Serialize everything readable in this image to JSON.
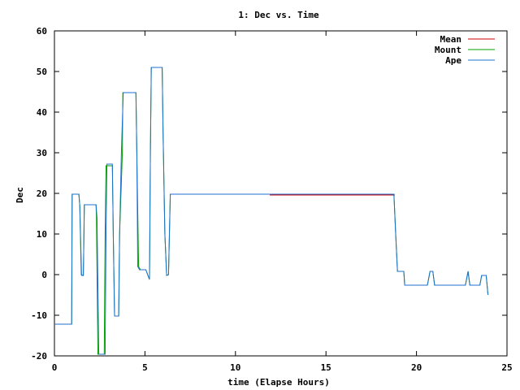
{
  "chart_data": {
    "type": "line",
    "title": "1: Dec vs. Time",
    "xlabel": "time (Elapse Hours)",
    "ylabel": "Dec",
    "xlim": [
      0,
      25
    ],
    "ylim": [
      -20,
      60
    ],
    "x_ticks": [
      0,
      5,
      10,
      15,
      20,
      25
    ],
    "y_ticks": [
      -20,
      -10,
      0,
      10,
      20,
      30,
      40,
      50,
      60
    ],
    "grid": false,
    "legend_position": "top-right",
    "series": [
      {
        "name": "Mean",
        "color": "#cc0000",
        "points": [
          [
            11.9,
            19.6
          ],
          [
            18.8,
            19.6
          ]
        ]
      },
      {
        "name": "Mount",
        "color": "#00a000",
        "points": [
          [
            0.0,
            -12.2
          ],
          [
            0.95,
            -12.2
          ],
          [
            0.98,
            19.8
          ],
          [
            1.35,
            19.8
          ],
          [
            1.4,
            17.0
          ],
          [
            1.48,
            0.0
          ],
          [
            1.6,
            -0.2
          ],
          [
            1.65,
            17.2
          ],
          [
            2.3,
            17.2
          ],
          [
            2.32,
            14.0
          ],
          [
            2.4,
            -19.6
          ],
          [
            2.75,
            -19.6
          ],
          [
            2.8,
            10.0
          ],
          [
            2.85,
            26.8
          ],
          [
            3.2,
            26.8
          ],
          [
            3.25,
            10.0
          ],
          [
            3.32,
            -10.2
          ],
          [
            3.55,
            -10.2
          ],
          [
            3.6,
            10.0
          ],
          [
            3.75,
            30.0
          ],
          [
            3.78,
            44.8
          ],
          [
            4.5,
            44.8
          ],
          [
            4.55,
            30.0
          ],
          [
            4.65,
            2.0
          ],
          [
            4.75,
            1.2
          ],
          [
            5.05,
            1.2
          ],
          [
            5.15,
            0.0
          ],
          [
            5.25,
            -1.2
          ],
          [
            5.3,
            30.0
          ],
          [
            5.35,
            51.0
          ],
          [
            5.95,
            51.0
          ],
          [
            6.0,
            35.0
          ],
          [
            6.1,
            10.0
          ],
          [
            6.2,
            -0.2
          ],
          [
            6.3,
            0.0
          ],
          [
            6.4,
            19.8
          ],
          [
            18.75,
            19.8
          ],
          [
            18.85,
            10.0
          ],
          [
            18.95,
            0.8
          ],
          [
            19.3,
            0.8
          ],
          [
            19.35,
            -2.6
          ],
          [
            20.2,
            -2.6
          ],
          [
            20.4,
            -2.6
          ],
          [
            20.6,
            -2.6
          ],
          [
            20.75,
            0.8
          ],
          [
            20.9,
            0.8
          ],
          [
            21.0,
            -2.6
          ],
          [
            22.7,
            -2.6
          ],
          [
            22.85,
            0.8
          ],
          [
            22.95,
            -2.6
          ],
          [
            23.5,
            -2.6
          ],
          [
            23.6,
            -0.2
          ],
          [
            23.85,
            -0.2
          ],
          [
            23.95,
            -5.0
          ]
        ]
      },
      {
        "name": "Ape",
        "color": "#1f6fd0",
        "points": [
          [
            0.0,
            -12.2
          ],
          [
            0.95,
            -12.2
          ],
          [
            0.98,
            19.8
          ],
          [
            1.35,
            19.8
          ],
          [
            1.4,
            17.0
          ],
          [
            1.5,
            -0.2
          ],
          [
            1.6,
            -0.2
          ],
          [
            1.65,
            17.2
          ],
          [
            2.3,
            17.2
          ],
          [
            2.35,
            14.0
          ],
          [
            2.45,
            -19.6
          ],
          [
            2.8,
            -19.6
          ],
          [
            2.85,
            10.0
          ],
          [
            2.9,
            27.2
          ],
          [
            3.2,
            27.2
          ],
          [
            3.25,
            10.0
          ],
          [
            3.32,
            -10.2
          ],
          [
            3.55,
            -10.2
          ],
          [
            3.6,
            10.0
          ],
          [
            3.7,
            30.0
          ],
          [
            3.8,
            44.8
          ],
          [
            4.5,
            44.8
          ],
          [
            4.55,
            30.0
          ],
          [
            4.6,
            2.0
          ],
          [
            4.7,
            1.2
          ],
          [
            5.05,
            1.2
          ],
          [
            5.15,
            0.0
          ],
          [
            5.25,
            -1.2
          ],
          [
            5.3,
            30.0
          ],
          [
            5.35,
            51.0
          ],
          [
            5.95,
            51.0
          ],
          [
            6.0,
            35.0
          ],
          [
            6.1,
            10.0
          ],
          [
            6.2,
            -0.2
          ],
          [
            6.3,
            0.0
          ],
          [
            6.4,
            19.8
          ],
          [
            18.75,
            19.8
          ],
          [
            18.85,
            10.0
          ],
          [
            18.95,
            0.8
          ],
          [
            19.3,
            0.8
          ],
          [
            19.35,
            -2.6
          ],
          [
            20.2,
            -2.6
          ],
          [
            20.4,
            -2.6
          ],
          [
            20.6,
            -2.6
          ],
          [
            20.75,
            0.8
          ],
          [
            20.9,
            0.8
          ],
          [
            21.0,
            -2.6
          ],
          [
            22.7,
            -2.6
          ],
          [
            22.85,
            0.8
          ],
          [
            22.95,
            -2.6
          ],
          [
            23.5,
            -2.6
          ],
          [
            23.6,
            -0.2
          ],
          [
            23.85,
            -0.2
          ],
          [
            23.95,
            -5.0
          ]
        ]
      }
    ]
  }
}
